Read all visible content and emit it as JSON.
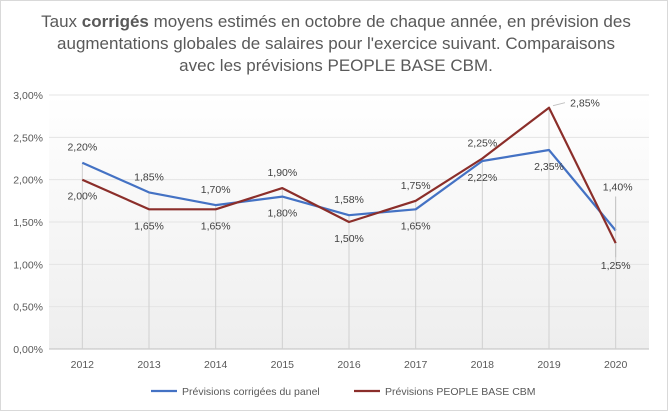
{
  "chart_data": {
    "type": "line",
    "title_parts": {
      "before": "Taux ",
      "bold": "corrigés",
      "after": " moyens estimés en octobre de chaque année, en prévision des augmentations globales de salaires pour l'exercice suivant. Comparaisons avec les prévisions PEOPLE BASE CBM."
    },
    "categories": [
      "2012",
      "2013",
      "2014",
      "2015",
      "2016",
      "2017",
      "2018",
      "2019",
      "2020"
    ],
    "ylim": [
      0,
      3
    ],
    "yticks": [
      0,
      0.5,
      1.0,
      1.5,
      2.0,
      2.5,
      3.0
    ],
    "ytick_labels": [
      "0,00%",
      "0,50%",
      "1,00%",
      "1,50%",
      "2,00%",
      "2,50%",
      "3,00%"
    ],
    "series": [
      {
        "name": "Prévisions corrigées du panel",
        "color": "#4472c4",
        "values": [
          2.2,
          1.85,
          1.7,
          1.8,
          1.58,
          1.65,
          2.22,
          2.35,
          1.4
        ],
        "labels": [
          "2,20%",
          "1,85%",
          "1,70%",
          "1,80%",
          "1,58%",
          "1,65%",
          "2,22%",
          "2,35%",
          "1,40%"
        ]
      },
      {
        "name": "Prévisions PEOPLE BASE CBM",
        "color": "#8b2e2a",
        "values": [
          2.0,
          1.65,
          1.65,
          1.9,
          1.5,
          1.75,
          2.25,
          2.85,
          1.25
        ],
        "labels": [
          "2,00%",
          "1,65%",
          "1,65%",
          "1,90%",
          "1,50%",
          "1,75%",
          "2,25%",
          "2,85%",
          "1,25%"
        ]
      }
    ],
    "legend_position": "bottom"
  }
}
